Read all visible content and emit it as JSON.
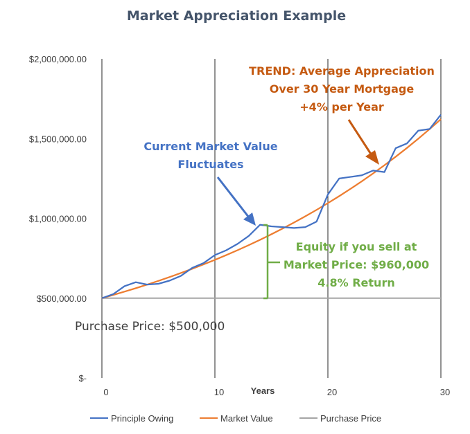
{
  "chart_data": {
    "type": "line",
    "title": "Market Appreciation Example",
    "xlabel": "Years",
    "ylabel": "",
    "xlim": [
      0,
      30
    ],
    "ylim": [
      0,
      2000000
    ],
    "x_ticks": [
      0,
      10,
      20,
      30
    ],
    "x_tick_labels": [
      "0",
      "10",
      "20",
      "30"
    ],
    "y_ticks": [
      0,
      500000,
      1000000,
      1500000,
      2000000
    ],
    "y_tick_labels": [
      "$-",
      "$500,000.00",
      "$1,000,000.00",
      "$1,500,000.00",
      "$2,000,000.00"
    ],
    "vertical_gridlines": [
      0,
      10,
      20,
      30
    ],
    "legend_position": "bottom",
    "x": [
      0,
      1,
      2,
      3,
      4,
      5,
      6,
      7,
      8,
      9,
      10,
      11,
      12,
      13,
      14,
      15,
      16,
      17,
      18,
      19,
      20,
      21,
      22,
      23,
      24,
      25,
      26,
      27,
      28,
      29,
      30
    ],
    "series": [
      {
        "name": "Principle Owing",
        "color": "#4472c4",
        "values": [
          500000,
          525000,
          575000,
          600000,
          585000,
          590000,
          610000,
          640000,
          690000,
          720000,
          770000,
          800000,
          840000,
          890000,
          960000,
          950000,
          945000,
          940000,
          945000,
          980000,
          1150000,
          1250000,
          1260000,
          1270000,
          1300000,
          1290000,
          1440000,
          1470000,
          1550000,
          1560000,
          1650000
        ]
      },
      {
        "name": "Market Value",
        "color": "#ed7d31",
        "values": [
          500000,
          520000,
          540800,
          562400,
          584900,
          608300,
          632700,
          658000,
          684300,
          711700,
          740100,
          769700,
          800500,
          832500,
          865800,
          900500,
          936500,
          973900,
          1012900,
          1053400,
          1095600,
          1139400,
          1185000,
          1232400,
          1281700,
          1333000,
          1386300,
          1441700,
          1499400,
          1559400,
          1621700
        ]
      },
      {
        "name": "Purchase Price",
        "color": "#a5a5a5",
        "values": [
          500000,
          500000,
          500000,
          500000,
          500000,
          500000,
          500000,
          500000,
          500000,
          500000,
          500000,
          500000,
          500000,
          500000,
          500000,
          500000,
          500000,
          500000,
          500000,
          500000,
          500000,
          500000,
          500000,
          500000,
          500000,
          500000,
          500000,
          500000,
          500000,
          500000,
          500000
        ]
      }
    ],
    "annotations": {
      "trend": {
        "lines": [
          "TREND: Average Appreciation",
          "Over 30 Year Mortgage",
          "+4% per Year"
        ],
        "color": "#c55a11"
      },
      "market": {
        "lines": [
          "Current Market Value",
          "Fluctuates"
        ],
        "color": "#4472c4"
      },
      "equity": {
        "lines": [
          "Equity if you sell at",
          "Market Price: $960,000",
          "4.8% Return"
        ],
        "color": "#70ad47"
      },
      "purchase": {
        "text": "Purchase Price: $500,000"
      }
    }
  }
}
